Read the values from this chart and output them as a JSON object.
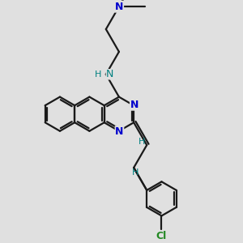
{
  "background_color": "#e0e0e0",
  "bond_color": "#1a1a1a",
  "N_color": "#0000cc",
  "NH_color": "#008080",
  "Cl_color": "#228822",
  "H_color": "#008080",
  "bond_width": 1.6,
  "dbo": 0.09,
  "figsize": [
    3.0,
    3.0
  ],
  "dpi": 100,
  "xlim": [
    0,
    10
  ],
  "ylim": [
    0,
    10
  ],
  "font_size_atom": 9,
  "font_size_h": 8
}
